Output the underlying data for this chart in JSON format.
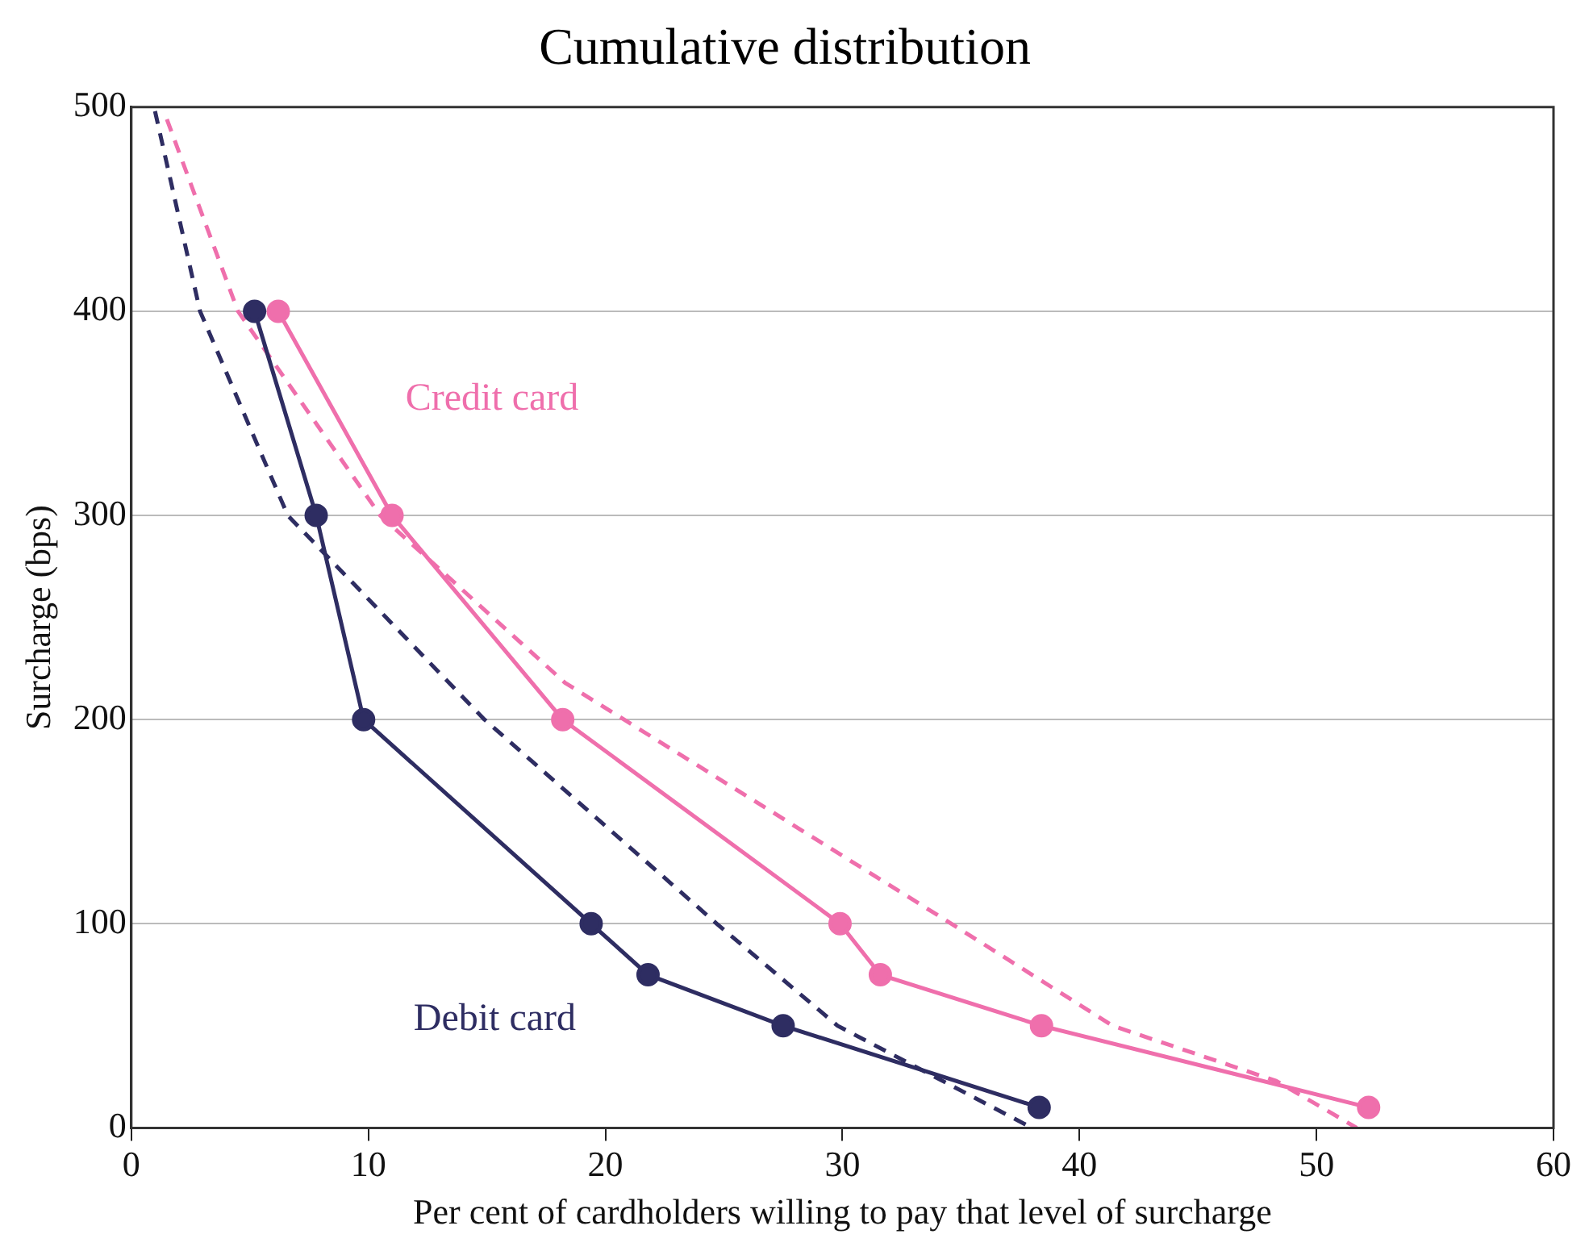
{
  "chart_data": {
    "type": "line",
    "title": "Cumulative distribution",
    "xlabel": "Per cent of cardholders willing to pay that level of surcharge",
    "ylabel": "Surcharge (bps)",
    "series": [
      {
        "name": "Credit card",
        "color": "#ef6fac",
        "marker": "circle",
        "line_style": "solid",
        "x": [
          6.2,
          11.0,
          18.2,
          29.9,
          31.6,
          38.4,
          52.2
        ],
        "values": [
          400,
          300,
          200,
          100,
          75,
          50,
          10
        ]
      },
      {
        "name": "Debit card",
        "color": "#2e2d62",
        "marker": "circle",
        "line_style": "solid",
        "x": [
          5.2,
          7.8,
          9.8,
          19.4,
          21.8,
          27.5,
          38.3
        ],
        "values": [
          400,
          300,
          200,
          100,
          75,
          50,
          10
        ]
      },
      {
        "color": "#ef6fac",
        "marker": "none",
        "line_style": "dashed",
        "x": [
          1.5,
          4.5,
          10.5,
          18.3,
          34.6,
          41.4,
          48.3,
          51.7
        ],
        "values": [
          494,
          400,
          300,
          218,
          100,
          50,
          23,
          0
        ]
      },
      {
        "color": "#2e2d62",
        "marker": "none",
        "line_style": "dashed",
        "x": [
          1.0,
          2.9,
          6.6,
          14.9,
          24.7,
          29.8,
          38.0
        ],
        "values": [
          498,
          400,
          300,
          200,
          100,
          50,
          0
        ]
      }
    ],
    "xlim": [
      0,
      60
    ],
    "xticks": [
      0,
      10,
      20,
      30,
      40,
      50,
      60
    ],
    "ylim": [
      0,
      500
    ],
    "yticks": [
      0,
      100,
      200,
      300,
      400,
      500
    ],
    "grid": "y",
    "legend": false
  }
}
